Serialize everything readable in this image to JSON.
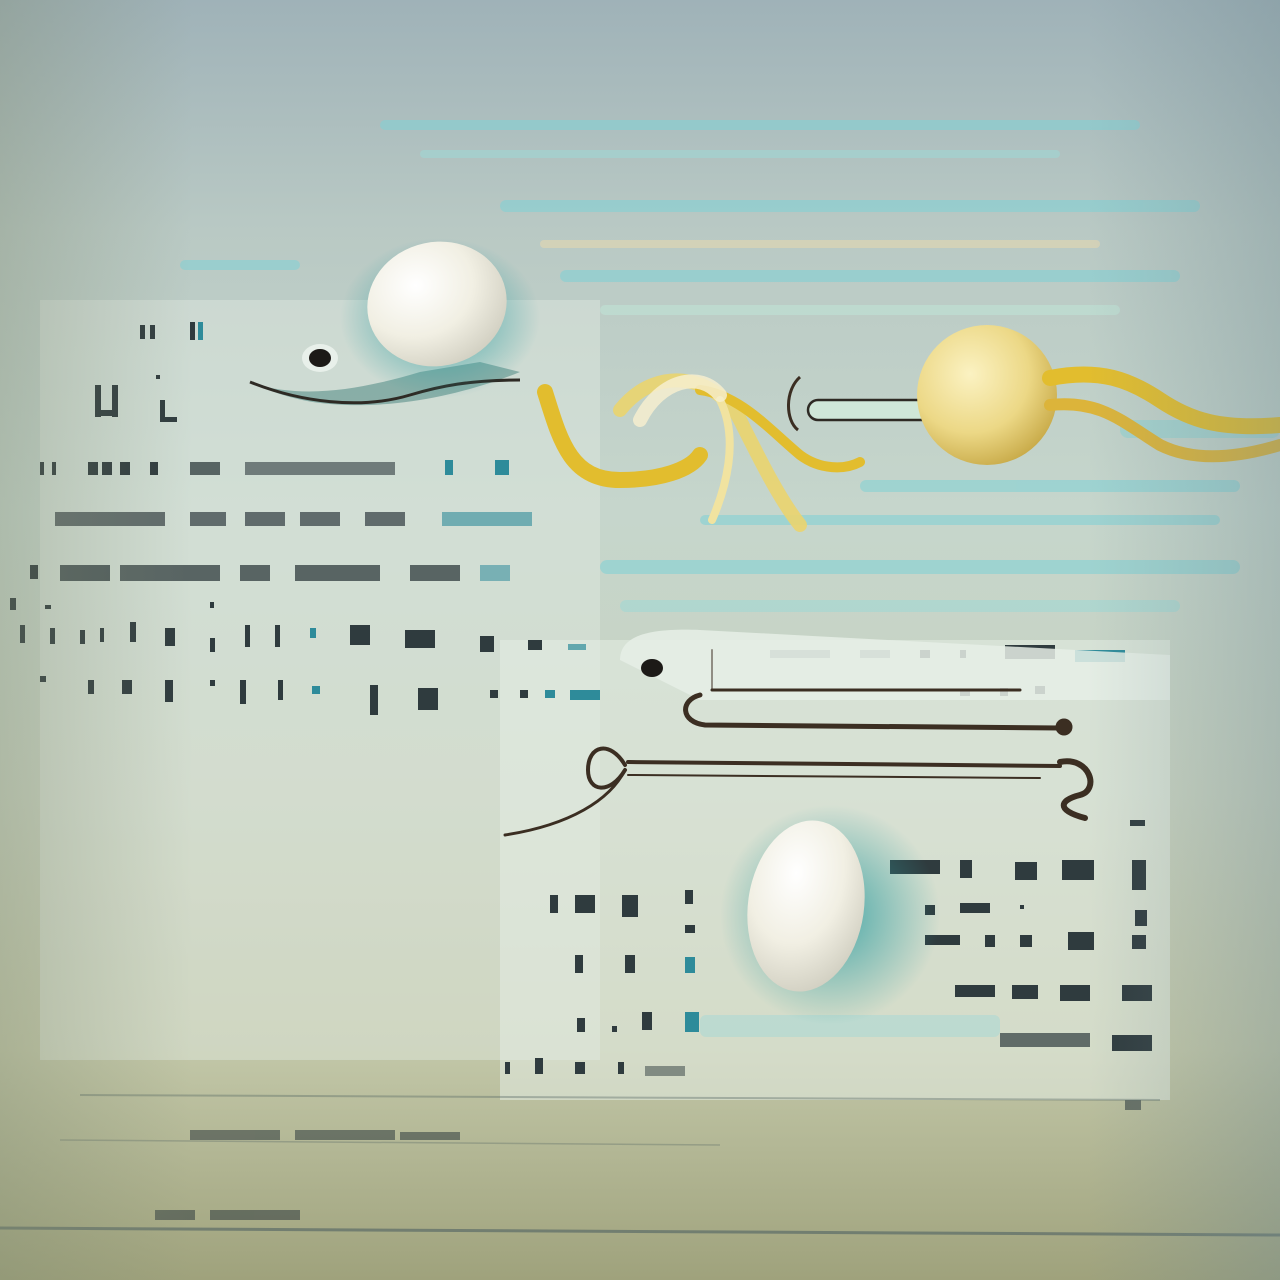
{
  "scene": {
    "palette": {
      "background_top": "#9fb2b8",
      "background_mid": "#c6d6cc",
      "background_bottom": "#9fa27c",
      "teal": "#4fb7b9",
      "aqua_stripe": "#7fd2d6",
      "egg": "#f1efe3",
      "yolk": "#e6cf6c",
      "ribbon": "#e2bd2e",
      "ink": "#2e2a24",
      "panel": "#dfe9e0"
    },
    "elements": [
      "egg-top",
      "bird-head-left",
      "yolk-ball",
      "ribbon-left",
      "ribbon-right",
      "egg-bottom",
      "bird-head-right",
      "stick-lines",
      "glyph-texture"
    ]
  }
}
